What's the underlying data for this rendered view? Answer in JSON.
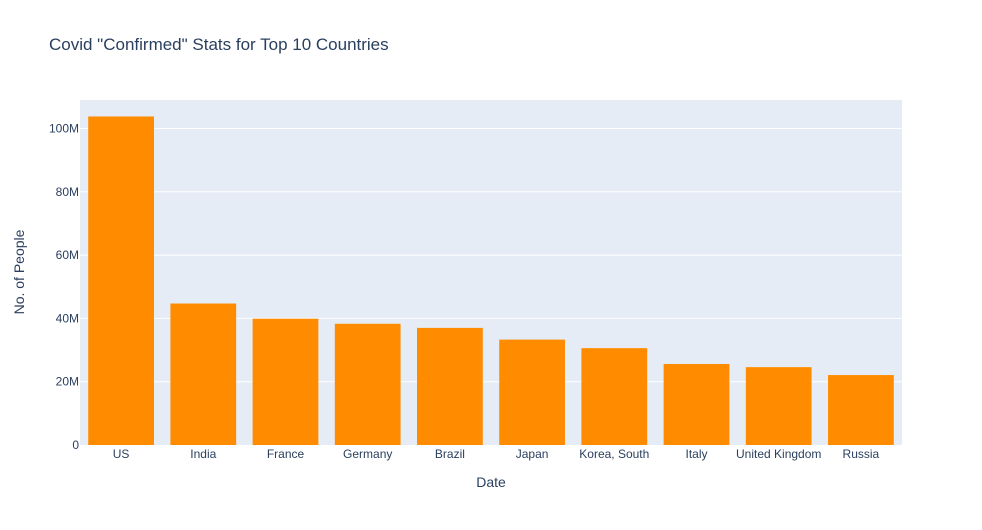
{
  "chart_data": {
    "type": "bar",
    "title": "Covid \"Confirmed\" Stats for Top 10 Countries",
    "xlabel": "Date",
    "ylabel": "No. of People",
    "categories": [
      "US",
      "India",
      "France",
      "Germany",
      "Brazil",
      "Japan",
      "Korea, South",
      "Italy",
      "United Kingdom",
      "Russia"
    ],
    "values": [
      103800000,
      44700000,
      39900000,
      38300000,
      37000000,
      33300000,
      30600000,
      25600000,
      24600000,
      22100000
    ],
    "ylim": [
      0,
      109000000
    ],
    "yticks": [
      0,
      20000000,
      40000000,
      60000000,
      80000000,
      100000000
    ],
    "ytick_labels": [
      "0",
      "20M",
      "40M",
      "60M",
      "80M",
      "100M"
    ],
    "bar_color": "#ff8c00",
    "plot_bg": "#e5ecf6",
    "grid": true,
    "legend": false
  }
}
